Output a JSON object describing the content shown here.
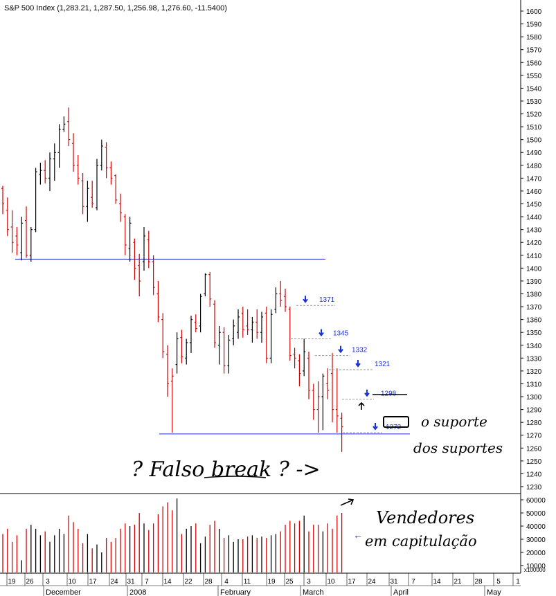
{
  "chart_data": {
    "type": "ohlc",
    "title": "S&P 500 Index (1,283.21, 1,287.50, 1,256.98, 1,276.60, -11.5400)",
    "price_axis": {
      "ylim": [
        1225,
        1605
      ],
      "ticks": [
        1230,
        1240,
        1250,
        1260,
        1270,
        1280,
        1290,
        1300,
        1310,
        1320,
        1330,
        1340,
        1350,
        1360,
        1370,
        1380,
        1390,
        1400,
        1410,
        1420,
        1430,
        1440,
        1450,
        1460,
        1470,
        1480,
        1490,
        1500,
        1510,
        1520,
        1530,
        1540,
        1550,
        1560,
        1570,
        1580,
        1590,
        1600
      ]
    },
    "volume_axis": {
      "ylim": [
        0,
        65000
      ],
      "ticks": [
        10000,
        20000,
        30000,
        40000,
        50000,
        60000
      ],
      "unit_label": "x100000"
    },
    "x_day_labels": [
      "19",
      "26",
      "3",
      "10",
      "17",
      "24",
      "31",
      "7",
      "14",
      "22",
      "28",
      "4",
      "11",
      "19",
      "25",
      "3",
      "10",
      "17",
      "24",
      "31",
      "7",
      "14",
      "21",
      "28",
      "5",
      "1"
    ],
    "x_month_labels": [
      "December",
      "2008",
      "February",
      "March",
      "April",
      "May"
    ],
    "bars": [
      {
        "o": 1462,
        "h": 1464,
        "l": 1442,
        "c": 1450,
        "v": 34000,
        "up": false
      },
      {
        "o": 1445,
        "h": 1455,
        "l": 1425,
        "c": 1430,
        "v": 38000,
        "up": false
      },
      {
        "o": 1432,
        "h": 1445,
        "l": 1412,
        "c": 1420,
        "v": 28000,
        "up": false
      },
      {
        "o": 1425,
        "h": 1432,
        "l": 1410,
        "c": 1418,
        "v": 33000,
        "up": false
      },
      {
        "o": 1412,
        "h": 1440,
        "l": 1406,
        "c": 1435,
        "v": 14000,
        "up": true
      },
      {
        "o": 1437,
        "h": 1448,
        "l": 1408,
        "c": 1410,
        "v": 38000,
        "up": false
      },
      {
        "o": 1410,
        "h": 1432,
        "l": 1405,
        "c": 1430,
        "v": 41000,
        "up": true
      },
      {
        "o": 1430,
        "h": 1478,
        "l": 1428,
        "c": 1475,
        "v": 38000,
        "up": true
      },
      {
        "o": 1473,
        "h": 1482,
        "l": 1465,
        "c": 1476,
        "v": 33000,
        "up": true
      },
      {
        "o": 1476,
        "h": 1484,
        "l": 1466,
        "c": 1470,
        "v": 36000,
        "up": false
      },
      {
        "o": 1470,
        "h": 1490,
        "l": 1460,
        "c": 1485,
        "v": 28000,
        "up": true
      },
      {
        "o": 1485,
        "h": 1497,
        "l": 1468,
        "c": 1490,
        "v": 33000,
        "up": true
      },
      {
        "o": 1490,
        "h": 1512,
        "l": 1478,
        "c": 1508,
        "v": 38000,
        "up": true
      },
      {
        "o": 1508,
        "h": 1518,
        "l": 1506,
        "c": 1512,
        "v": 34000,
        "up": true
      },
      {
        "o": 1514,
        "h": 1525,
        "l": 1495,
        "c": 1500,
        "v": 48000,
        "up": false
      },
      {
        "o": 1497,
        "h": 1505,
        "l": 1475,
        "c": 1480,
        "v": 43000,
        "up": false
      },
      {
        "o": 1480,
        "h": 1488,
        "l": 1465,
        "c": 1470,
        "v": 38000,
        "up": false
      },
      {
        "o": 1468,
        "h": 1474,
        "l": 1442,
        "c": 1448,
        "v": 27000,
        "up": false
      },
      {
        "o": 1448,
        "h": 1468,
        "l": 1436,
        "c": 1462,
        "v": 34000,
        "up": true
      },
      {
        "o": 1455,
        "h": 1468,
        "l": 1447,
        "c": 1450,
        "v": 23000,
        "up": false
      },
      {
        "o": 1447,
        "h": 1485,
        "l": 1445,
        "c": 1480,
        "v": 26000,
        "up": true
      },
      {
        "o": 1480,
        "h": 1500,
        "l": 1476,
        "c": 1495,
        "v": 20000,
        "up": true
      },
      {
        "o": 1494,
        "h": 1498,
        "l": 1470,
        "c": 1478,
        "v": 31000,
        "up": false
      },
      {
        "o": 1478,
        "h": 1483,
        "l": 1465,
        "c": 1470,
        "v": 28000,
        "up": false
      },
      {
        "o": 1472,
        "h": 1473,
        "l": 1450,
        "c": 1453,
        "v": 31000,
        "up": false
      },
      {
        "o": 1450,
        "h": 1458,
        "l": 1436,
        "c": 1443,
        "v": 38000,
        "up": false
      },
      {
        "o": 1440,
        "h": 1442,
        "l": 1410,
        "c": 1418,
        "v": 42000,
        "up": false
      },
      {
        "o": 1415,
        "h": 1440,
        "l": 1405,
        "c": 1435,
        "v": 40000,
        "up": true
      },
      {
        "o": 1420,
        "h": 1423,
        "l": 1391,
        "c": 1400,
        "v": 41000,
        "up": false
      },
      {
        "o": 1402,
        "h": 1411,
        "l": 1378,
        "c": 1390,
        "v": 50000,
        "up": false
      },
      {
        "o": 1405,
        "h": 1432,
        "l": 1398,
        "c": 1425,
        "v": 42000,
        "up": true
      },
      {
        "o": 1422,
        "h": 1429,
        "l": 1400,
        "c": 1405,
        "v": 37000,
        "up": false
      },
      {
        "o": 1405,
        "h": 1410,
        "l": 1379,
        "c": 1385,
        "v": 42000,
        "up": false
      },
      {
        "o": 1380,
        "h": 1390,
        "l": 1358,
        "c": 1362,
        "v": 49000,
        "up": false
      },
      {
        "o": 1360,
        "h": 1365,
        "l": 1330,
        "c": 1335,
        "v": 55000,
        "up": false
      },
      {
        "o": 1333,
        "h": 1340,
        "l": 1300,
        "c": 1310,
        "v": 58000,
        "up": false
      },
      {
        "o": 1312,
        "h": 1322,
        "l": 1272,
        "c": 1316,
        "v": 52000,
        "up": false
      },
      {
        "o": 1325,
        "h": 1350,
        "l": 1318,
        "c": 1345,
        "v": 61000,
        "up": true
      },
      {
        "o": 1346,
        "h": 1352,
        "l": 1326,
        "c": 1331,
        "v": 34000,
        "up": false
      },
      {
        "o": 1330,
        "h": 1345,
        "l": 1325,
        "c": 1342,
        "v": 38000,
        "up": true
      },
      {
        "o": 1342,
        "h": 1363,
        "l": 1334,
        "c": 1360,
        "v": 40000,
        "up": true
      },
      {
        "o": 1358,
        "h": 1364,
        "l": 1350,
        "c": 1353,
        "v": 42000,
        "up": false
      },
      {
        "o": 1355,
        "h": 1380,
        "l": 1350,
        "c": 1378,
        "v": 27000,
        "up": true
      },
      {
        "o": 1380,
        "h": 1396,
        "l": 1378,
        "c": 1395,
        "v": 32000,
        "up": true
      },
      {
        "o": 1395,
        "h": 1397,
        "l": 1370,
        "c": 1376,
        "v": 41000,
        "up": false
      },
      {
        "o": 1372,
        "h": 1375,
        "l": 1338,
        "c": 1342,
        "v": 44000,
        "up": false
      },
      {
        "o": 1340,
        "h": 1355,
        "l": 1325,
        "c": 1350,
        "v": 38000,
        "up": true
      },
      {
        "o": 1350,
        "h": 1354,
        "l": 1318,
        "c": 1324,
        "v": 31000,
        "up": false
      },
      {
        "o": 1324,
        "h": 1348,
        "l": 1318,
        "c": 1344,
        "v": 33000,
        "up": true
      },
      {
        "o": 1345,
        "h": 1360,
        "l": 1340,
        "c": 1355,
        "v": 28000,
        "up": true
      },
      {
        "o": 1350,
        "h": 1368,
        "l": 1345,
        "c": 1362,
        "v": 30000,
        "up": true
      },
      {
        "o": 1365,
        "h": 1370,
        "l": 1346,
        "c": 1352,
        "v": 30000,
        "up": false
      },
      {
        "o": 1355,
        "h": 1368,
        "l": 1348,
        "c": 1352,
        "v": 32000,
        "up": false
      },
      {
        "o": 1352,
        "h": 1362,
        "l": 1342,
        "c": 1358,
        "v": 33000,
        "up": true
      },
      {
        "o": 1358,
        "h": 1368,
        "l": 1345,
        "c": 1350,
        "v": 31000,
        "up": false
      },
      {
        "o": 1350,
        "h": 1366,
        "l": 1342,
        "c": 1362,
        "v": 32000,
        "up": true
      },
      {
        "o": 1365,
        "h": 1370,
        "l": 1326,
        "c": 1330,
        "v": 31000,
        "up": false
      },
      {
        "o": 1330,
        "h": 1368,
        "l": 1326,
        "c": 1364,
        "v": 33000,
        "up": true
      },
      {
        "o": 1368,
        "h": 1385,
        "l": 1365,
        "c": 1380,
        "v": 34000,
        "up": true
      },
      {
        "o": 1380,
        "h": 1390,
        "l": 1370,
        "c": 1375,
        "v": 36000,
        "up": false
      },
      {
        "o": 1378,
        "h": 1384,
        "l": 1366,
        "c": 1370,
        "v": 41000,
        "up": false
      },
      {
        "o": 1368,
        "h": 1370,
        "l": 1328,
        "c": 1332,
        "v": 44000,
        "up": false
      },
      {
        "o": 1333,
        "h": 1338,
        "l": 1322,
        "c": 1330,
        "v": 42000,
        "up": false
      },
      {
        "o": 1328,
        "h": 1333,
        "l": 1308,
        "c": 1318,
        "v": 44000,
        "up": false
      },
      {
        "o": 1320,
        "h": 1345,
        "l": 1316,
        "c": 1335,
        "v": 48000,
        "up": true
      },
      {
        "o": 1330,
        "h": 1335,
        "l": 1298,
        "c": 1305,
        "v": 36000,
        "up": false
      },
      {
        "o": 1305,
        "h": 1310,
        "l": 1282,
        "c": 1290,
        "v": 41000,
        "up": false
      },
      {
        "o": 1290,
        "h": 1312,
        "l": 1272,
        "c": 1300,
        "v": 41000,
        "up": false
      },
      {
        "o": 1300,
        "h": 1318,
        "l": 1274,
        "c": 1316,
        "v": 36000,
        "up": true
      },
      {
        "o": 1310,
        "h": 1322,
        "l": 1298,
        "c": 1305,
        "v": 42000,
        "up": false
      },
      {
        "o": 1318,
        "h": 1334,
        "l": 1280,
        "c": 1290,
        "v": 38000,
        "up": false
      },
      {
        "o": 1290,
        "h": 1322,
        "l": 1272,
        "c": 1285,
        "v": 48000,
        "up": false
      },
      {
        "o": 1283.21,
        "h": 1287.5,
        "l": 1256.98,
        "c": 1276.6,
        "v": 50000,
        "up": false
      }
    ],
    "resistance_levels": [
      {
        "value": 1371,
        "label": "1371"
      },
      {
        "value": 1345,
        "label": "1345"
      },
      {
        "value": 1332,
        "label": "1332"
      },
      {
        "value": 1321,
        "label": "1321"
      },
      {
        "value": 1298,
        "label": "1298"
      },
      {
        "value": 1272,
        "label": "1272"
      }
    ],
    "horizontal_lines": [
      {
        "value": 1407
      },
      {
        "value": 1271
      }
    ]
  },
  "annotations": {
    "false_break": "? Falso break ? ->",
    "support": "o suporte",
    "support2": "dos suportes",
    "sellers": "Vendedores",
    "sellers2": "em capitulação"
  }
}
